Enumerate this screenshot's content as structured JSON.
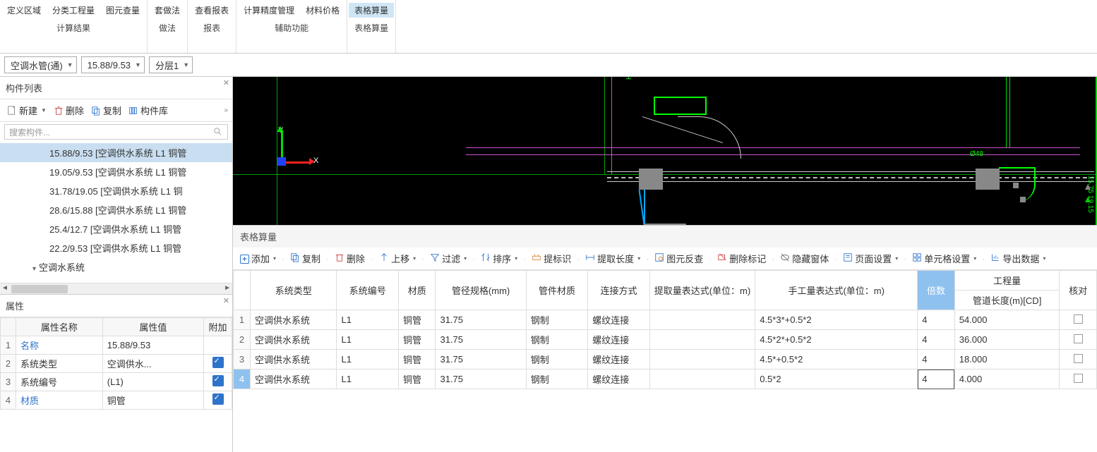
{
  "ribbon": {
    "groups": [
      {
        "label": "计算结果",
        "items": [
          "定义区域",
          "分类工程量",
          "图元查量"
        ]
      },
      {
        "label": "做法",
        "items": [
          "套做法"
        ]
      },
      {
        "label": "报表",
        "items": [
          "查看报表"
        ]
      },
      {
        "label": "辅助功能",
        "items": [
          "计算精度管理",
          "材料价格"
        ]
      },
      {
        "label": "表格算量",
        "items": [
          "表格算量"
        ],
        "active": 0
      }
    ]
  },
  "selectors": {
    "a": "空调水管(通)",
    "b": "15.88/9.53",
    "c": "分层1"
  },
  "componentList": {
    "title": "构件列表",
    "toolbar": {
      "new": "新建",
      "del": "删除",
      "copy": "复制",
      "lib": "构件库"
    },
    "searchPlaceholder": "搜索构件...",
    "items": [
      "15.88/9.53 [空调供水系统 L1 铜管",
      "19.05/9.53 [空调供水系统 L1 铜管",
      "31.78/19.05 [空调供水系统 L1 铜",
      "28.6/15.88 [空调供水系统 L1 铜管",
      "25.4/12.7 [空调供水系统 L1 铜管",
      "22.2/9.53 [空调供水系统 L1 铜管"
    ],
    "group": "空调水系统",
    "selected": 0
  },
  "props": {
    "title": "属性",
    "headers": [
      "属性名称",
      "属性值",
      "附加"
    ],
    "rows": [
      {
        "n": 1,
        "name": "名称",
        "val": "15.88/9.53",
        "add": false,
        "link": true
      },
      {
        "n": 2,
        "name": "系统类型",
        "val": "空调供水...",
        "add": true
      },
      {
        "n": 3,
        "name": "系统编号",
        "val": "(L1)",
        "add": true
      },
      {
        "n": 4,
        "name": "材质",
        "val": "铜管",
        "add": true,
        "link": true
      }
    ]
  },
  "dataPanel": {
    "title": "表格算量",
    "toolbar": [
      "添加",
      "复制",
      "删除",
      "上移",
      "过滤",
      "排序",
      "提标识",
      "提取长度",
      "图元反查",
      "删除标记",
      "隐藏窗体",
      "页面设置",
      "单元格设置",
      "导出数据"
    ],
    "toolbarHasDropdown": [
      true,
      false,
      false,
      true,
      true,
      true,
      false,
      true,
      false,
      false,
      false,
      true,
      true,
      true
    ],
    "headers": {
      "sys_type": "系统类型",
      "sys_no": "系统编号",
      "material": "材质",
      "spec": "管径规格(mm)",
      "fitting_mat": "管件材质",
      "connect": "连接方式",
      "extract_expr": "提取量表达式(单位：m)",
      "manual_expr": "手工量表达式(单位：m)",
      "multiplier": "倍数",
      "qty_group": "工程量",
      "qty_sub": "管道长度(m)[CD]",
      "check": "核对"
    },
    "rows": [
      {
        "sys_type": "空调供水系统",
        "sys_no": "L1",
        "material": "铜管",
        "spec": "31.75",
        "fitting_mat": "钢制",
        "connect": "螺纹连接",
        "extract_expr": "",
        "manual_expr": "4.5*3*+0.5*2",
        "multiplier": "4",
        "qty": "54.000"
      },
      {
        "sys_type": "空调供水系统",
        "sys_no": "L1",
        "material": "铜管",
        "spec": "31.75",
        "fitting_mat": "钢制",
        "connect": "螺纹连接",
        "extract_expr": "",
        "manual_expr": "4.5*2*+0.5*2",
        "multiplier": "4",
        "qty": "36.000"
      },
      {
        "sys_type": "空调供水系统",
        "sys_no": "L1",
        "material": "铜管",
        "spec": "31.75",
        "fitting_mat": "钢制",
        "connect": "螺纹连接",
        "extract_expr": "",
        "manual_expr": "4.5*+0.5*2",
        "multiplier": "4",
        "qty": "18.000"
      },
      {
        "sys_type": "空调供水系统",
        "sys_no": "L1",
        "material": "铜管",
        "spec": "31.75",
        "fitting_mat": "钢制",
        "connect": "螺纹连接",
        "extract_expr": "",
        "manual_expr": "0.5*2",
        "multiplier": "4",
        "qty": "4.000"
      }
    ],
    "selectedRow": 3,
    "editingCol": "multiplier"
  },
  "colors": {
    "accent": "#2E73CA",
    "highlight": "#8fc1ef",
    "green": "#00ff00",
    "red": "#ff2020"
  }
}
